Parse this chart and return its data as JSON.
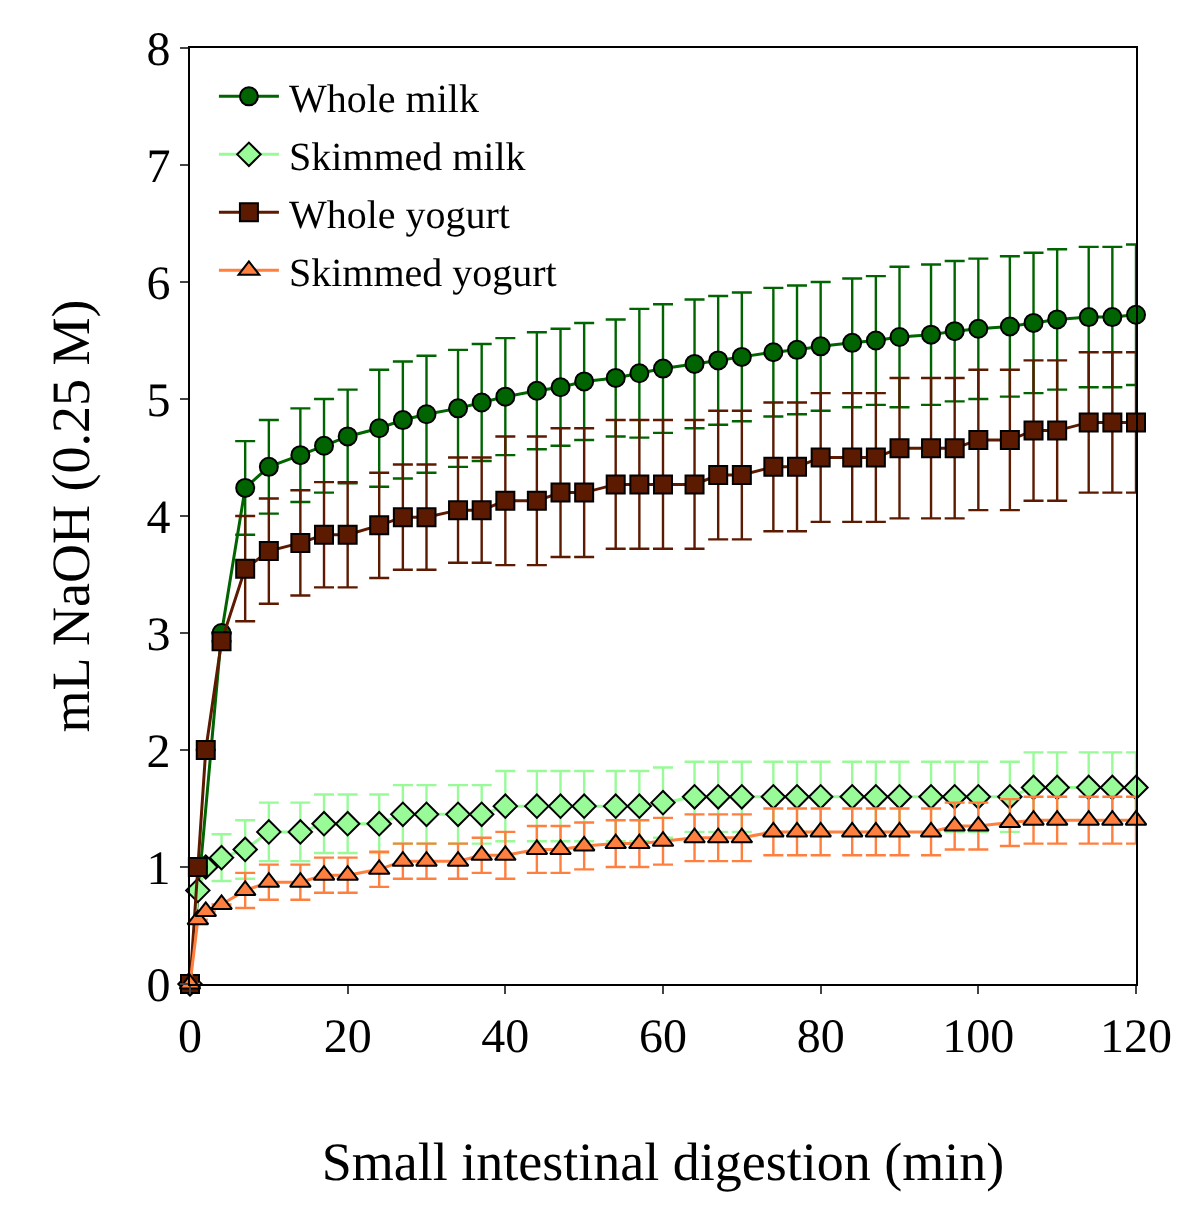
{
  "chart_data": {
    "type": "line",
    "xlabel": "Small intestinal digestion (min)",
    "ylabel": "mL NaOH (0.25 M)",
    "x": [
      0,
      1,
      2,
      4,
      7,
      10,
      14,
      17,
      20,
      24,
      27,
      30,
      34,
      37,
      40,
      44,
      47,
      50,
      54,
      57,
      60,
      64,
      67,
      70,
      74,
      77,
      80,
      84,
      87,
      90,
      94,
      97,
      100,
      104,
      107,
      110,
      114,
      117,
      120
    ],
    "xlim": [
      0,
      120
    ],
    "xticks": [
      0,
      20,
      40,
      60,
      80,
      100,
      120
    ],
    "ylim": [
      0,
      8
    ],
    "yticks": [
      0,
      1,
      2,
      3,
      4,
      5,
      6,
      7,
      8
    ],
    "legend": "top left",
    "line_style": "solid",
    "series": [
      {
        "name": "Whole milk",
        "color": "#006400",
        "marker": "circle",
        "values": [
          0,
          null,
          null,
          3.0,
          4.24,
          4.42,
          4.52,
          4.6,
          4.68,
          4.75,
          4.82,
          4.87,
          4.92,
          4.97,
          5.02,
          5.07,
          5.1,
          5.15,
          5.18,
          5.22,
          5.26,
          5.3,
          5.33,
          5.36,
          5.4,
          5.42,
          5.45,
          5.48,
          5.5,
          5.53,
          5.55,
          5.58,
          5.6,
          5.62,
          5.65,
          5.68,
          5.7,
          5.7,
          5.72
        ],
        "errors": [
          null,
          null,
          null,
          null,
          0.4,
          0.4,
          0.4,
          0.4,
          0.4,
          0.5,
          0.5,
          0.5,
          0.5,
          0.5,
          0.5,
          0.5,
          0.5,
          0.5,
          0.5,
          0.55,
          0.55,
          0.55,
          0.55,
          0.55,
          0.55,
          0.55,
          0.55,
          0.55,
          0.55,
          0.6,
          0.6,
          0.6,
          0.6,
          0.6,
          0.6,
          0.6,
          0.6,
          0.6,
          0.6
        ]
      },
      {
        "name": "Skimmed milk",
        "color": "#98fb98",
        "marker": "diamond",
        "values": [
          0,
          0.8,
          1.0,
          1.08,
          1.15,
          1.3,
          1.3,
          1.37,
          1.37,
          1.37,
          1.45,
          1.45,
          1.45,
          1.45,
          1.52,
          1.52,
          1.52,
          1.52,
          1.52,
          1.52,
          1.55,
          1.6,
          1.6,
          1.6,
          1.6,
          1.6,
          1.6,
          1.6,
          1.6,
          1.6,
          1.6,
          1.6,
          1.6,
          1.6,
          1.68,
          1.68,
          1.68,
          1.68,
          1.68
        ],
        "errors": [
          null,
          null,
          null,
          0.2,
          0.25,
          0.25,
          0.25,
          0.25,
          0.25,
          0.25,
          0.25,
          0.25,
          0.25,
          0.25,
          0.3,
          0.3,
          0.3,
          0.3,
          0.3,
          0.3,
          0.3,
          0.3,
          0.3,
          0.3,
          0.3,
          0.3,
          0.3,
          0.3,
          0.3,
          0.3,
          0.3,
          0.3,
          0.3,
          0.3,
          0.3,
          0.3,
          0.3,
          0.3,
          0.3
        ]
      },
      {
        "name": "Whole yogurt",
        "color": "#5c1a00",
        "marker": "square",
        "values": [
          0,
          1.0,
          2.0,
          2.93,
          3.55,
          3.7,
          3.77,
          3.84,
          3.84,
          3.92,
          3.99,
          3.99,
          4.05,
          4.05,
          4.13,
          4.13,
          4.2,
          4.2,
          4.27,
          4.27,
          4.27,
          4.27,
          4.35,
          4.35,
          4.42,
          4.42,
          4.5,
          4.5,
          4.5,
          4.58,
          4.58,
          4.58,
          4.65,
          4.65,
          4.73,
          4.73,
          4.8,
          4.8,
          4.8
        ],
        "errors": [
          null,
          null,
          null,
          null,
          0.45,
          0.45,
          0.45,
          0.45,
          0.45,
          0.45,
          0.45,
          0.45,
          0.45,
          0.45,
          0.55,
          0.55,
          0.55,
          0.55,
          0.55,
          0.55,
          0.55,
          0.55,
          0.55,
          0.55,
          0.55,
          0.55,
          0.55,
          0.55,
          0.55,
          0.6,
          0.6,
          0.6,
          0.6,
          0.6,
          0.6,
          0.6,
          0.6,
          0.6,
          0.6
        ]
      },
      {
        "name": "Skimmed yogurt",
        "color": "#ff7f3f",
        "marker": "triangle",
        "values": [
          0,
          0.55,
          0.62,
          0.68,
          0.8,
          0.87,
          0.87,
          0.93,
          0.93,
          0.98,
          1.05,
          1.05,
          1.05,
          1.1,
          1.1,
          1.15,
          1.15,
          1.18,
          1.2,
          1.2,
          1.22,
          1.25,
          1.25,
          1.25,
          1.3,
          1.3,
          1.3,
          1.3,
          1.3,
          1.3,
          1.3,
          1.35,
          1.35,
          1.38,
          1.4,
          1.4,
          1.4,
          1.4,
          1.4
        ],
        "errors": [
          null,
          null,
          null,
          null,
          0.15,
          0.15,
          0.15,
          0.15,
          0.15,
          0.15,
          0.15,
          0.15,
          0.15,
          0.15,
          0.2,
          0.2,
          0.2,
          0.2,
          0.2,
          0.2,
          0.2,
          0.2,
          0.2,
          0.2,
          0.2,
          0.2,
          0.2,
          0.2,
          0.2,
          0.2,
          0.2,
          0.2,
          0.2,
          0.2,
          0.2,
          0.2,
          0.2,
          0.2,
          0.2
        ]
      }
    ]
  }
}
